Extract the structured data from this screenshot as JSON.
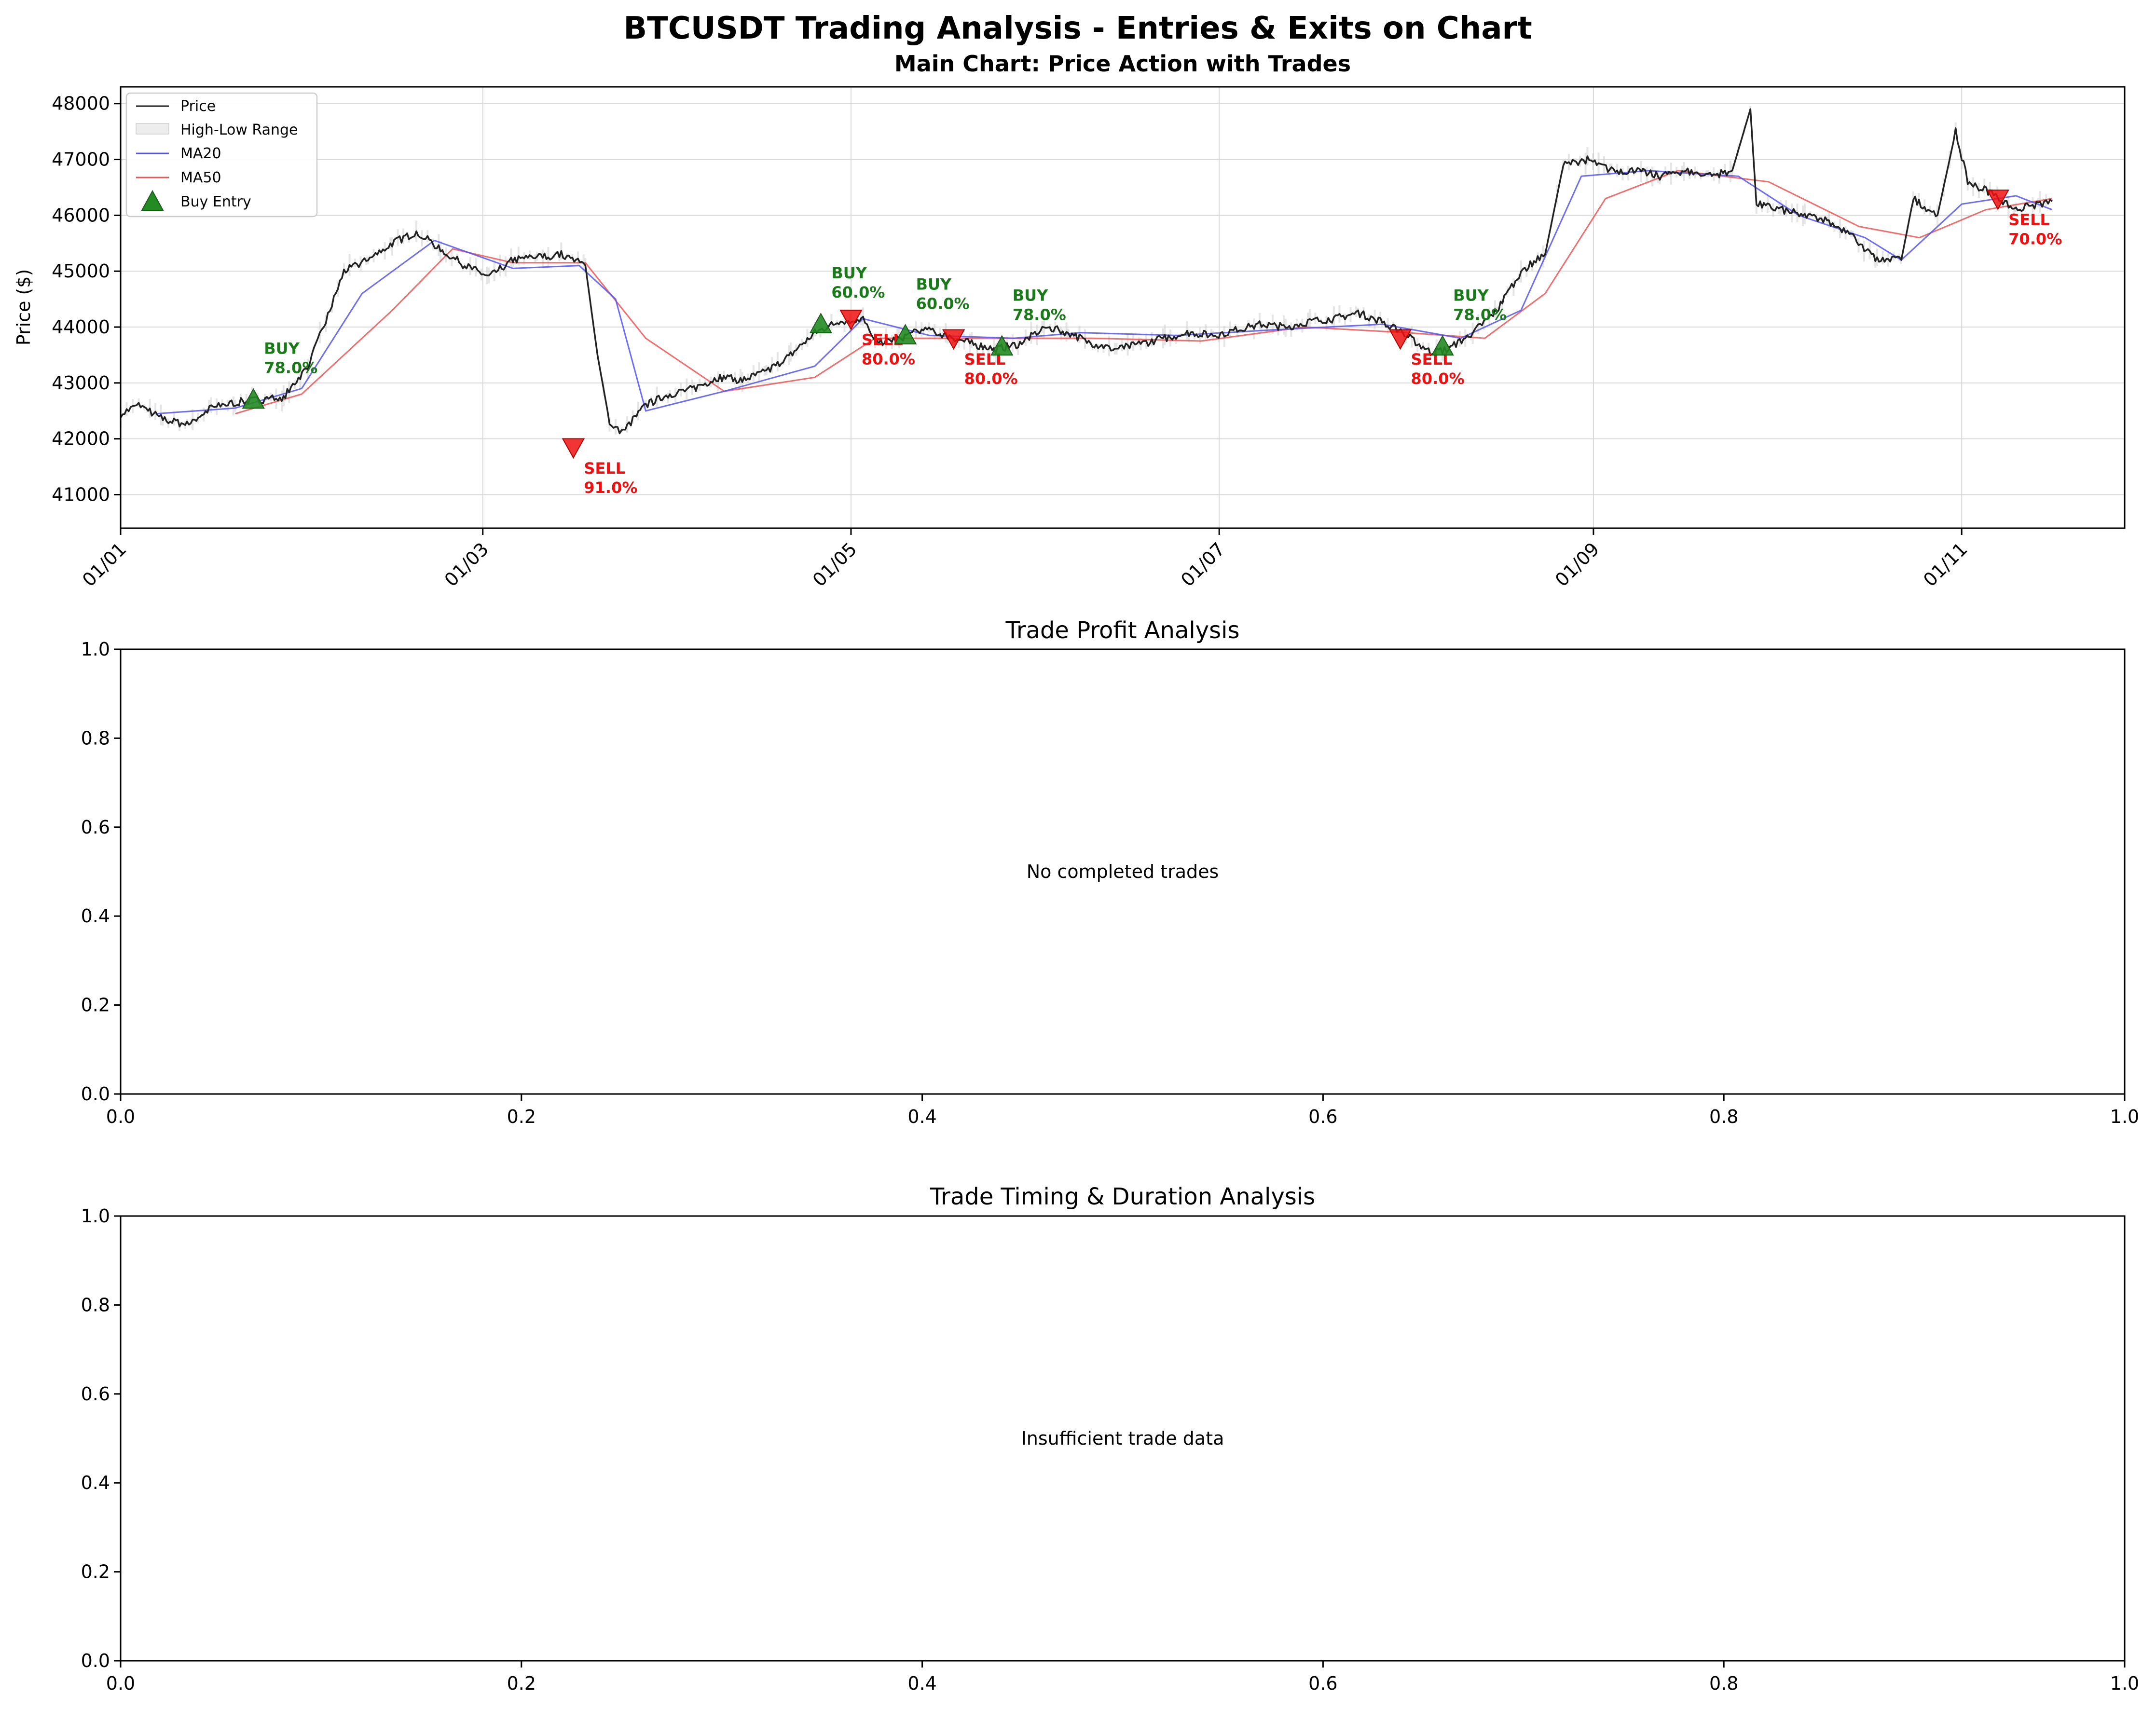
{
  "figure": {
    "suptitle": "BTCUSDT Trading Analysis - Entries & Exits on Chart"
  },
  "colors": {
    "price": "#222222",
    "ma20": "#5555ee",
    "ma50": "#ee5555",
    "buy": "#228B22",
    "sell": "#ee1111",
    "buy_text": "#1a7a1a",
    "sell_text": "#ee1111",
    "range_fill": "#cccccc",
    "grid": "#d9d9d9"
  },
  "chart_data": [
    {
      "type": "line",
      "title": "Main Chart: Price Action with Trades",
      "xlabel": "",
      "ylabel": "Price ($)",
      "x_range": [
        "2024-01-01",
        "2024-11-28"
      ],
      "x_ticks": [
        "01/01",
        "01/03",
        "01/05",
        "01/07",
        "01/09",
        "01/11"
      ],
      "x_tick_dates": [
        "2024-01-01",
        "2024-03-01",
        "2024-05-01",
        "2024-07-01",
        "2024-09-01",
        "2024-11-01"
      ],
      "ylim": [
        40400,
        48300
      ],
      "y_ticks": [
        41000,
        42000,
        43000,
        44000,
        45000,
        46000,
        47000,
        48000
      ],
      "grid": true,
      "legend": {
        "position": "top-left",
        "entries": [
          "Price",
          "High-Low Range",
          "MA20",
          "MA50",
          "Buy Entry"
        ]
      },
      "price_points": [
        [
          "2024-01-01",
          42450
        ],
        [
          "2024-01-04",
          42600
        ],
        [
          "2024-01-08",
          42350
        ],
        [
          "2024-01-12",
          42250
        ],
        [
          "2024-01-16",
          42550
        ],
        [
          "2024-01-20",
          42650
        ],
        [
          "2024-01-24",
          42700
        ],
        [
          "2024-01-28",
          42750
        ],
        [
          "2024-02-01",
          43300
        ],
        [
          "2024-02-04",
          44100
        ],
        [
          "2024-02-07",
          45000
        ],
        [
          "2024-02-11",
          45200
        ],
        [
          "2024-02-15",
          45500
        ],
        [
          "2024-02-19",
          45700
        ],
        [
          "2024-02-23",
          45400
        ],
        [
          "2024-02-27",
          45100
        ],
        [
          "2024-03-02",
          44900
        ],
        [
          "2024-03-06",
          45200
        ],
        [
          "2024-03-10",
          45250
        ],
        [
          "2024-03-14",
          45300
        ],
        [
          "2024-03-18",
          45100
        ],
        [
          "2024-03-20",
          43500
        ],
        [
          "2024-03-22",
          42300
        ],
        [
          "2024-03-24",
          42100
        ],
        [
          "2024-03-28",
          42600
        ],
        [
          "2024-04-01",
          42800
        ],
        [
          "2024-04-05",
          42900
        ],
        [
          "2024-04-09",
          43100
        ],
        [
          "2024-04-13",
          43050
        ],
        [
          "2024-04-17",
          43200
        ],
        [
          "2024-04-21",
          43500
        ],
        [
          "2024-04-25",
          43900
        ],
        [
          "2024-04-29",
          44100
        ],
        [
          "2024-05-03",
          44150
        ],
        [
          "2024-05-05",
          43700
        ],
        [
          "2024-05-09",
          43800
        ],
        [
          "2024-05-13",
          43950
        ],
        [
          "2024-05-17",
          43850
        ],
        [
          "2024-05-21",
          43700
        ],
        [
          "2024-05-25",
          43600
        ],
        [
          "2024-05-29",
          43700
        ],
        [
          "2024-06-02",
          44000
        ],
        [
          "2024-06-06",
          43900
        ],
        [
          "2024-06-10",
          43700
        ],
        [
          "2024-06-14",
          43600
        ],
        [
          "2024-06-18",
          43700
        ],
        [
          "2024-06-22",
          43800
        ],
        [
          "2024-06-26",
          43900
        ],
        [
          "2024-06-30",
          43850
        ],
        [
          "2024-07-04",
          43950
        ],
        [
          "2024-07-08",
          44050
        ],
        [
          "2024-07-12",
          44000
        ],
        [
          "2024-07-16",
          44100
        ],
        [
          "2024-07-20",
          44150
        ],
        [
          "2024-07-24",
          44250
        ],
        [
          "2024-07-28",
          44100
        ],
        [
          "2024-08-01",
          43850
        ],
        [
          "2024-08-05",
          43550
        ],
        [
          "2024-08-08",
          43600
        ],
        [
          "2024-08-12",
          43900
        ],
        [
          "2024-08-16",
          44300
        ],
        [
          "2024-08-20",
          45000
        ],
        [
          "2024-08-24",
          45300
        ],
        [
          "2024-08-27",
          46900
        ],
        [
          "2024-08-31",
          47000
        ],
        [
          "2024-09-04",
          46800
        ],
        [
          "2024-09-08",
          46800
        ],
        [
          "2024-09-12",
          46700
        ],
        [
          "2024-09-16",
          46800
        ],
        [
          "2024-09-20",
          46700
        ],
        [
          "2024-09-24",
          46800
        ],
        [
          "2024-09-27",
          47900
        ],
        [
          "2024-09-28",
          46200
        ],
        [
          "2024-10-02",
          46100
        ],
        [
          "2024-10-06",
          46000
        ],
        [
          "2024-10-10",
          45900
        ],
        [
          "2024-10-14",
          45600
        ],
        [
          "2024-10-18",
          45200
        ],
        [
          "2024-10-22",
          45200
        ],
        [
          "2024-10-24",
          46300
        ],
        [
          "2024-10-28",
          46000
        ],
        [
          "2024-10-31",
          47500
        ],
        [
          "2024-11-02",
          46600
        ],
        [
          "2024-11-06",
          46400
        ],
        [
          "2024-11-10",
          46100
        ],
        [
          "2024-11-14",
          46200
        ],
        [
          "2024-11-16",
          46250
        ]
      ],
      "ma20_points": [
        [
          "2024-01-07",
          42450
        ],
        [
          "2024-01-20",
          42550
        ],
        [
          "2024-01-31",
          42900
        ],
        [
          "2024-02-10",
          44600
        ],
        [
          "2024-02-22",
          45550
        ],
        [
          "2024-03-06",
          45050
        ],
        [
          "2024-03-17",
          45100
        ],
        [
          "2024-03-23",
          44500
        ],
        [
          "2024-03-28",
          42500
        ],
        [
          "2024-04-10",
          42850
        ],
        [
          "2024-04-25",
          43300
        ],
        [
          "2024-05-03",
          44150
        ],
        [
          "2024-05-14",
          43850
        ],
        [
          "2024-05-28",
          43800
        ],
        [
          "2024-06-08",
          43900
        ],
        [
          "2024-06-24",
          43850
        ],
        [
          "2024-07-10",
          43950
        ],
        [
          "2024-07-28",
          44050
        ],
        [
          "2024-08-10",
          43800
        ],
        [
          "2024-08-20",
          44300
        ],
        [
          "2024-08-30",
          46700
        ],
        [
          "2024-09-10",
          46800
        ],
        [
          "2024-09-25",
          46700
        ],
        [
          "2024-10-05",
          46000
        ],
        [
          "2024-10-16",
          45600
        ],
        [
          "2024-10-22",
          45200
        ],
        [
          "2024-11-01",
          46200
        ],
        [
          "2024-11-10",
          46350
        ],
        [
          "2024-11-16",
          46100
        ]
      ],
      "ma50_points": [
        [
          "2024-01-20",
          42450
        ],
        [
          "2024-01-31",
          42800
        ],
        [
          "2024-02-15",
          44300
        ],
        [
          "2024-02-25",
          45400
        ],
        [
          "2024-03-06",
          45150
        ],
        [
          "2024-03-18",
          45150
        ],
        [
          "2024-03-28",
          43800
        ],
        [
          "2024-04-10",
          42850
        ],
        [
          "2024-04-25",
          43100
        ],
        [
          "2024-05-05",
          43800
        ],
        [
          "2024-05-20",
          43800
        ],
        [
          "2024-06-10",
          43800
        ],
        [
          "2024-06-28",
          43750
        ],
        [
          "2024-07-15",
          44000
        ],
        [
          "2024-08-01",
          43900
        ],
        [
          "2024-08-14",
          43800
        ],
        [
          "2024-08-24",
          44600
        ],
        [
          "2024-09-03",
          46300
        ],
        [
          "2024-09-15",
          46800
        ],
        [
          "2024-09-30",
          46600
        ],
        [
          "2024-10-15",
          45800
        ],
        [
          "2024-10-25",
          45600
        ],
        [
          "2024-11-05",
          46100
        ],
        [
          "2024-11-16",
          46300
        ]
      ],
      "trades": [
        {
          "kind": "buy",
          "date": "2024-01-23",
          "price": 42700,
          "label": "BUY",
          "pct": "78.0%"
        },
        {
          "kind": "sell",
          "date": "2024-03-16",
          "price": 41850,
          "label": "SELL",
          "pct": "91.0%"
        },
        {
          "kind": "buy",
          "date": "2024-04-26",
          "price": 44050,
          "label": "BUY",
          "pct": "60.0%"
        },
        {
          "kind": "sell",
          "date": "2024-05-01",
          "price": 44150,
          "label": "SELL",
          "pct": "80.0%"
        },
        {
          "kind": "buy",
          "date": "2024-05-10",
          "price": 43850,
          "label": "BUY",
          "pct": "60.0%"
        },
        {
          "kind": "sell",
          "date": "2024-05-18",
          "price": 43800,
          "label": "SELL",
          "pct": "80.0%"
        },
        {
          "kind": "buy",
          "date": "2024-05-26",
          "price": 43650,
          "label": "BUY",
          "pct": "78.0%"
        },
        {
          "kind": "sell",
          "date": "2024-07-31",
          "price": 43800,
          "label": "SELL",
          "pct": "80.0%"
        },
        {
          "kind": "buy",
          "date": "2024-08-07",
          "price": 43650,
          "label": "BUY",
          "pct": "78.0%"
        },
        {
          "kind": "sell",
          "date": "2024-11-07",
          "price": 46300,
          "label": "SELL",
          "pct": "70.0%"
        }
      ]
    },
    {
      "type": "line",
      "title": "Trade Profit Analysis",
      "xlim": [
        0,
        1
      ],
      "ylim": [
        0,
        1
      ],
      "x_ticks": [
        "0.0",
        "0.2",
        "0.4",
        "0.6",
        "0.8",
        "1.0"
      ],
      "y_ticks": [
        "0.0",
        "0.2",
        "0.4",
        "0.6",
        "0.8",
        "1.0"
      ],
      "message": "No completed trades"
    },
    {
      "type": "line",
      "title": "Trade Timing & Duration Analysis",
      "xlim": [
        0,
        1
      ],
      "ylim": [
        0,
        1
      ],
      "x_ticks": [
        "0.0",
        "0.2",
        "0.4",
        "0.6",
        "0.8",
        "1.0"
      ],
      "y_ticks": [
        "0.0",
        "0.2",
        "0.4",
        "0.6",
        "0.8",
        "1.0"
      ],
      "message": "Insufficient trade data"
    }
  ]
}
